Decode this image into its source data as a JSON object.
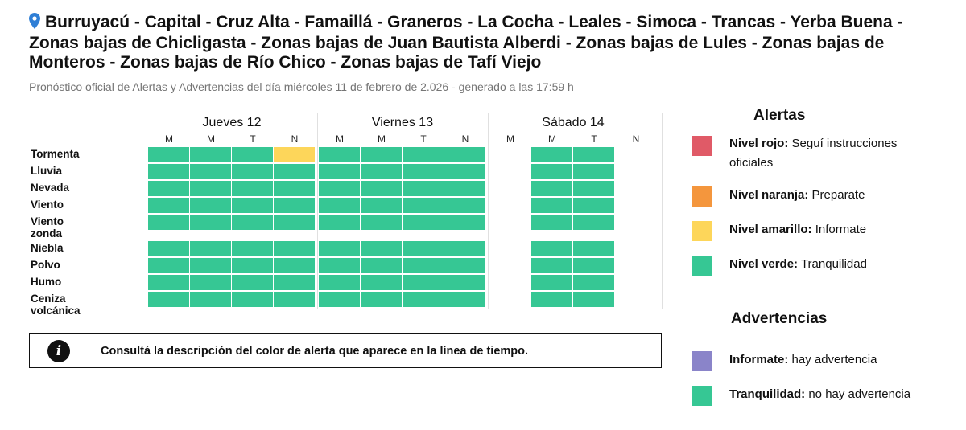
{
  "header": {
    "title": "Burruyacú - Capital - Cruz Alta - Famaillá - Graneros - La Cocha - Leales - Simoca - Trancas - Yerba Buena - Zonas bajas de Chicligasta - Zonas bajas de Juan Bautista Alberdi - Zonas bajas de Lules - Zonas bajas de Monteros - Zonas bajas de Río Chico - Zonas bajas de Tafí Viejo",
    "subtitle": "Pronóstico oficial de Alertas y Advertencias del día miércoles 11 de febrero de 2.026 - generado a las 17:59 h"
  },
  "timeline": {
    "days": [
      {
        "label": "Jueves 12",
        "slots": [
          "M",
          "M",
          "T",
          "N"
        ]
      },
      {
        "label": "Viernes 13",
        "slots": [
          "M",
          "M",
          "T",
          "N"
        ]
      },
      {
        "label": "Sábado 14",
        "slots": [
          "M",
          "M",
          "T",
          "N"
        ]
      }
    ],
    "alert_rows": [
      {
        "label": "Tormenta",
        "levels": [
          "verde",
          "verde",
          "verde",
          "amarillo",
          "verde",
          "verde",
          "verde",
          "verde",
          null,
          "verde",
          "verde",
          null
        ]
      },
      {
        "label": "Lluvia",
        "levels": [
          "verde",
          "verde",
          "verde",
          "verde",
          "verde",
          "verde",
          "verde",
          "verde",
          null,
          "verde",
          "verde",
          null
        ]
      },
      {
        "label": "Nevada",
        "levels": [
          "verde",
          "verde",
          "verde",
          "verde",
          "verde",
          "verde",
          "verde",
          "verde",
          null,
          "verde",
          "verde",
          null
        ]
      },
      {
        "label": "Viento",
        "levels": [
          "verde",
          "verde",
          "verde",
          "verde",
          "verde",
          "verde",
          "verde",
          "verde",
          null,
          "verde",
          "verde",
          null
        ]
      },
      {
        "label": "Viento zonda",
        "levels": [
          "verde",
          "verde",
          "verde",
          "verde",
          "verde",
          "verde",
          "verde",
          "verde",
          null,
          "verde",
          "verde",
          null
        ]
      }
    ],
    "warning_rows": [
      {
        "label": "Niebla",
        "levels": [
          "verde",
          "verde",
          "verde",
          "verde",
          "verde",
          "verde",
          "verde",
          "verde",
          null,
          "verde",
          "verde",
          null
        ]
      },
      {
        "label": "Polvo",
        "levels": [
          "verde",
          "verde",
          "verde",
          "verde",
          "verde",
          "verde",
          "verde",
          "verde",
          null,
          "verde",
          "verde",
          null
        ]
      },
      {
        "label": "Humo",
        "levels": [
          "verde",
          "verde",
          "verde",
          "verde",
          "verde",
          "verde",
          "verde",
          "verde",
          null,
          "verde",
          "verde",
          null
        ]
      },
      {
        "label": "Ceniza volcánica",
        "levels": [
          "verde",
          "verde",
          "verde",
          "verde",
          "verde",
          "verde",
          "verde",
          "verde",
          null,
          "verde",
          "verde",
          null
        ]
      }
    ]
  },
  "info": {
    "text": "Consultá la descripción del color de alerta que aparece en la línea de tiempo."
  },
  "legend": {
    "alerts_title": "Alertas",
    "alerts": [
      {
        "name": "Nivel rojo:",
        "desc": "Seguí instrucciones oficiales",
        "color": "#e05a67"
      },
      {
        "name": "Nivel naranja:",
        "desc": "Preparate",
        "color": "#f4963d"
      },
      {
        "name": "Nivel amarillo:",
        "desc": "Informate",
        "color": "#fdd65a"
      },
      {
        "name": "Nivel verde:",
        "desc": "Tranquilidad",
        "color": "#36c794"
      }
    ],
    "warnings_title": "Advertencias",
    "warnings": [
      {
        "name": "Informate:",
        "desc": "hay advertencia",
        "color": "#8a84c9"
      },
      {
        "name": "Tranquilidad:",
        "desc": "no hay advertencia",
        "color": "#36c794"
      }
    ]
  },
  "colors": {
    "verde": "#36c794",
    "amarillo": "#fdd65a",
    "naranja": "#f4963d",
    "rojo": "#e05a67",
    "advertencia": "#8a84c9"
  },
  "icons": {
    "location": "location-pin-icon",
    "info": "info-icon"
  }
}
